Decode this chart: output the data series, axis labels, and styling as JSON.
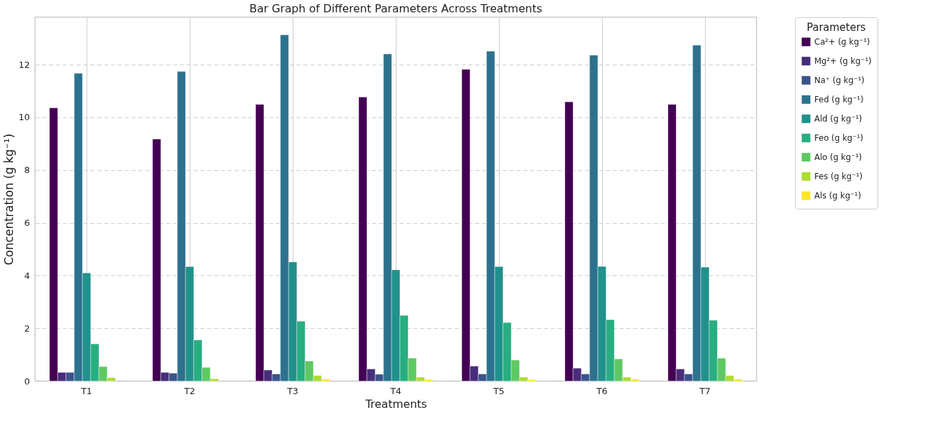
{
  "chart_data": {
    "type": "bar",
    "title": "Bar Graph of Different Parameters Across Treatments",
    "xlabel": "Treatments",
    "ylabel": "Concentration (g kg⁻¹)",
    "legend_title": "Parameters",
    "categories": [
      "T1",
      "T2",
      "T3",
      "T4",
      "T5",
      "T6",
      "T7"
    ],
    "series": [
      {
        "name": "Ca²+ (g kg⁻¹)",
        "color": "#440154",
        "values": [
          10.36,
          9.18,
          10.49,
          10.77,
          11.82,
          10.59,
          10.49
        ]
      },
      {
        "name": "Mg²+ (g kg⁻¹)",
        "color": "#472d7b",
        "values": [
          0.33,
          0.33,
          0.42,
          0.46,
          0.57,
          0.49,
          0.46
        ]
      },
      {
        "name": "Na⁺ (g kg⁻¹)",
        "color": "#3b528b",
        "values": [
          0.33,
          0.3,
          0.27,
          0.26,
          0.27,
          0.27,
          0.27
        ]
      },
      {
        "name": "Fed (g kg⁻¹)",
        "color": "#2c728e",
        "values": [
          11.67,
          11.74,
          13.13,
          12.41,
          12.51,
          12.36,
          12.74
        ]
      },
      {
        "name": "Ald (g kg⁻¹)",
        "color": "#21918c",
        "values": [
          4.1,
          4.34,
          4.52,
          4.22,
          4.34,
          4.35,
          4.32
        ]
      },
      {
        "name": "Feo (g kg⁻¹)",
        "color": "#28ae80",
        "values": [
          1.41,
          1.56,
          2.27,
          2.49,
          2.22,
          2.33,
          2.31
        ]
      },
      {
        "name": "Alo (g kg⁻¹)",
        "color": "#5ec962",
        "values": [
          0.55,
          0.52,
          0.76,
          0.87,
          0.8,
          0.84,
          0.87
        ]
      },
      {
        "name": "Fes (g kg⁻¹)",
        "color": "#addc30",
        "values": [
          0.13,
          0.09,
          0.21,
          0.15,
          0.15,
          0.15,
          0.21
        ]
      },
      {
        "name": "Als (g kg⁻¹)",
        "color": "#fde725",
        "values": [
          null,
          null,
          0.08,
          0.06,
          0.06,
          0.08,
          0.08
        ]
      }
    ],
    "ylim": [
      0,
      13.8
    ],
    "yticks": [
      0,
      2,
      4,
      6,
      8,
      10,
      12
    ],
    "grid": true,
    "legend": "right"
  }
}
